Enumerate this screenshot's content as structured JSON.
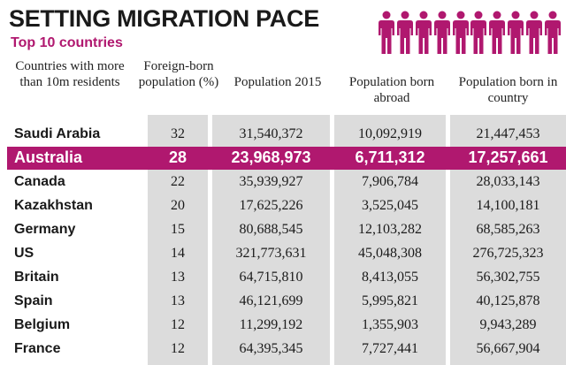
{
  "colors": {
    "accent": "#b0186f",
    "column_shade": "#dcdcdc"
  },
  "icons": [
    "person-icon"
  ],
  "chart_data": {
    "type": "table",
    "title": "SETTING MIGRATION PACE",
    "subtitle": "Top 10 countries",
    "columns": [
      "Countries with more than 10m residents",
      "Foreign-born population (%)",
      "Population 2015",
      "Population born abroad",
      "Population born in country"
    ],
    "highlighted_row": "Australia",
    "rows": [
      {
        "country": "Saudi Arabia",
        "foreign_pct": "32",
        "pop2015": "31,540,372",
        "abroad": "10,092,919",
        "native": "21,447,453"
      },
      {
        "country": "Australia",
        "foreign_pct": "28",
        "pop2015": "23,968,973",
        "abroad": "6,711,312",
        "native": "17,257,661"
      },
      {
        "country": "Canada",
        "foreign_pct": "22",
        "pop2015": "35,939,927",
        "abroad": "7,906,784",
        "native": "28,033,143"
      },
      {
        "country": "Kazakhstan",
        "foreign_pct": "20",
        "pop2015": "17,625,226",
        "abroad": "3,525,045",
        "native": "14,100,181"
      },
      {
        "country": "Germany",
        "foreign_pct": "15",
        "pop2015": "80,688,545",
        "abroad": "12,103,282",
        "native": "68,585,263"
      },
      {
        "country": "US",
        "foreign_pct": "14",
        "pop2015": "321,773,631",
        "abroad": "45,048,308",
        "native": "276,725,323"
      },
      {
        "country": "Britain",
        "foreign_pct": "13",
        "pop2015": "64,715,810",
        "abroad": "8,413,055",
        "native": "56,302,755"
      },
      {
        "country": "Spain",
        "foreign_pct": "13",
        "pop2015": "46,121,699",
        "abroad": "5,995,821",
        "native": "40,125,878"
      },
      {
        "country": "Belgium",
        "foreign_pct": "12",
        "pop2015": "11,299,192",
        "abroad": "1,355,903",
        "native": "9,943,289"
      },
      {
        "country": "France",
        "foreign_pct": "12",
        "pop2015": "64,395,345",
        "abroad": "7,727,441",
        "native": "56,667,904"
      }
    ]
  }
}
